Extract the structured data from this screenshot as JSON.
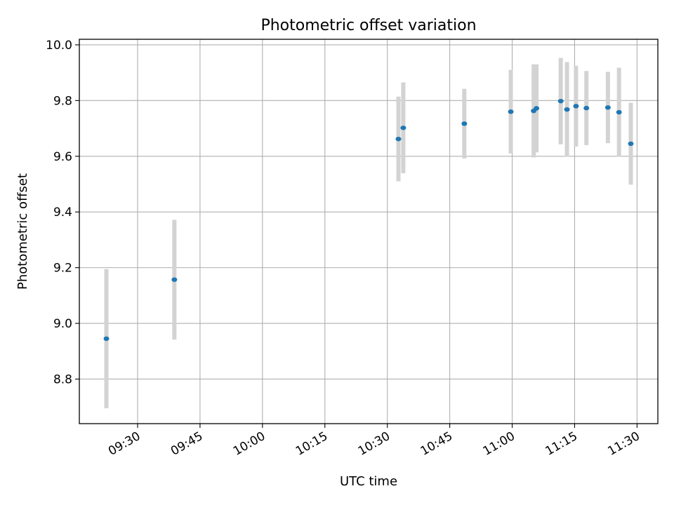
{
  "chart_data": {
    "type": "scatter",
    "title": "Photometric offset variation",
    "xlabel": "UTC time",
    "ylabel": "Photometric offset",
    "xlim": [
      "09:16:00",
      "11:35:00"
    ],
    "ylim": [
      8.64,
      10.02
    ],
    "grid": true,
    "x_tick_labels": [
      "09:30",
      "09:45",
      "10:00",
      "10:15",
      "10:30",
      "10:45",
      "11:00",
      "11:15",
      "11:30"
    ],
    "y_tick_labels": [
      "8.8",
      "9.0",
      "9.2",
      "9.4",
      "9.6",
      "9.8",
      "10.0"
    ],
    "colors": {
      "points": "#1f77b4",
      "error_bars": "#d3d3d3",
      "grid": "#b0b0b0",
      "frame": "#000000"
    },
    "series": [
      {
        "points": [
          {
            "x": "09:22:30",
            "y": 8.945,
            "err": 0.25
          },
          {
            "x": "09:38:50",
            "y": 9.157,
            "err": 0.215
          },
          {
            "x": "10:32:40",
            "y": 9.662,
            "err": 0.152
          },
          {
            "x": "10:33:50",
            "y": 9.702,
            "err": 0.163
          },
          {
            "x": "10:48:30",
            "y": 9.717,
            "err": 0.125
          },
          {
            "x": "10:59:40",
            "y": 9.76,
            "err": 0.15
          },
          {
            "x": "11:05:10",
            "y": 9.763,
            "err": 0.167
          },
          {
            "x": "11:05:50",
            "y": 9.772,
            "err": 0.158
          },
          {
            "x": "11:11:40",
            "y": 9.798,
            "err": 0.155
          },
          {
            "x": "11:13:10",
            "y": 9.768,
            "err": 0.17
          },
          {
            "x": "11:15:20",
            "y": 9.78,
            "err": 0.145
          },
          {
            "x": "11:17:50",
            "y": 9.773,
            "err": 0.133
          },
          {
            "x": "11:23:00",
            "y": 9.775,
            "err": 0.128
          },
          {
            "x": "11:25:40",
            "y": 9.758,
            "err": 0.16
          },
          {
            "x": "11:28:30",
            "y": 9.645,
            "err": 0.147
          }
        ]
      }
    ]
  }
}
